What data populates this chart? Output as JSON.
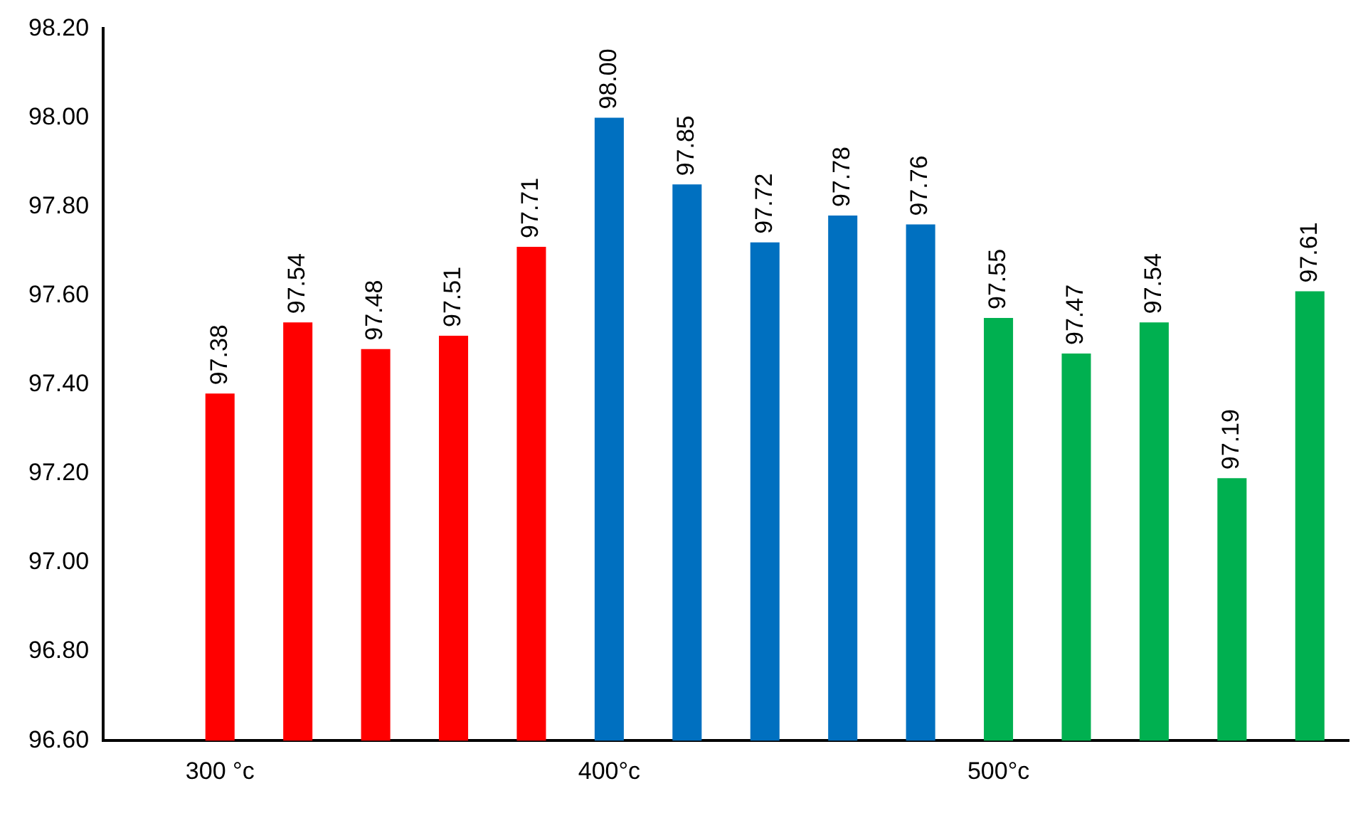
{
  "chart_data": {
    "type": "bar",
    "categories": [
      null,
      "300 °c",
      null,
      null,
      null,
      null,
      "400°c",
      null,
      null,
      null,
      null,
      "500°c",
      null,
      null,
      null,
      null
    ],
    "values": [
      null,
      97.38,
      97.54,
      97.48,
      97.51,
      97.71,
      98.0,
      97.85,
      97.72,
      97.78,
      97.76,
      97.55,
      97.47,
      97.54,
      97.19,
      97.61
    ],
    "value_labels": [
      null,
      "97.38",
      "97.54",
      "97.48",
      "97.51",
      "97.71",
      "98.00",
      "97.85",
      "97.72",
      "97.78",
      "97.76",
      "97.55",
      "97.47",
      "97.54",
      "97.19",
      "97.61"
    ],
    "colors": [
      "#ff0000",
      "#ff0000",
      "#ff0000",
      "#ff0000",
      "#ff0000",
      "#ff0000",
      "#0070c0",
      "#0070c0",
      "#0070c0",
      "#0070c0",
      "#0070c0",
      "#00b050",
      "#00b050",
      "#00b050",
      "#00b050",
      "#00b050"
    ],
    "ylim": [
      96.6,
      98.2
    ],
    "yticks": [
      {
        "value": 96.6,
        "label": "96.60"
      },
      {
        "value": 96.8,
        "label": "96.80"
      },
      {
        "value": 97.0,
        "label": "97.00"
      },
      {
        "value": 97.2,
        "label": "97.20"
      },
      {
        "value": 97.4,
        "label": "97.40"
      },
      {
        "value": 97.6,
        "label": "97.60"
      },
      {
        "value": 97.8,
        "label": "97.80"
      },
      {
        "value": 98.0,
        "label": "98.00"
      },
      {
        "value": 98.2,
        "label": "98.20"
      }
    ],
    "grid": false,
    "legend": false
  }
}
